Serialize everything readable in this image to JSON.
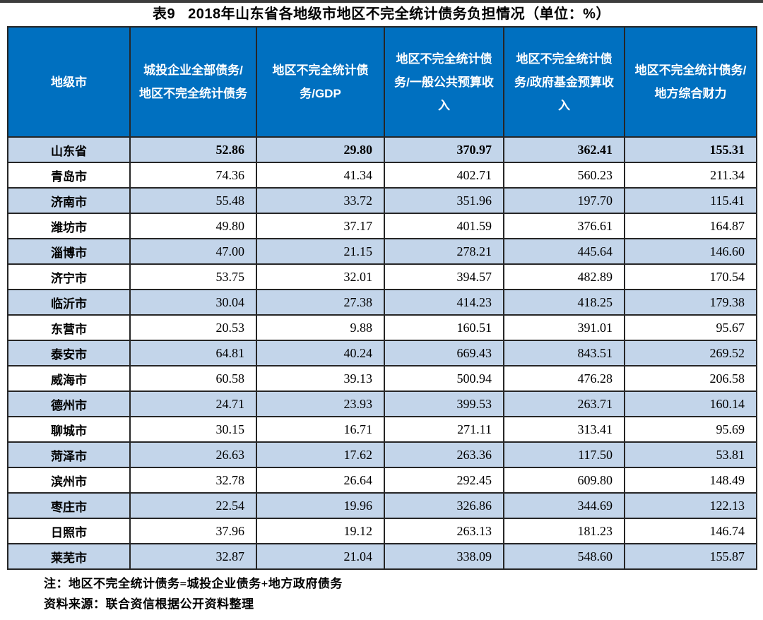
{
  "page": {
    "title_label": "表9",
    "title_text": "2018年山东省各地级市地区不完全统计债务负担情况（单位：%）"
  },
  "table": {
    "columns": [
      "地级市",
      "城投企业全部债务/地区不完全统计债务",
      "地区不完全统计债务/GDP",
      "地区不完全统计债务/一般公共预算收入",
      "地区不完全统计债务/政府基金预算收入",
      "地区不完全统计债务/地方综合财力"
    ],
    "rows": [
      {
        "name": "山东省",
        "values": [
          "52.86",
          "29.80",
          "370.97",
          "362.41",
          "155.31"
        ],
        "bold": true
      },
      {
        "name": "青岛市",
        "values": [
          "74.36",
          "41.34",
          "402.71",
          "560.23",
          "211.34"
        ],
        "bold": false
      },
      {
        "name": "济南市",
        "values": [
          "55.48",
          "33.72",
          "351.96",
          "197.70",
          "115.41"
        ],
        "bold": false
      },
      {
        "name": "潍坊市",
        "values": [
          "49.80",
          "37.17",
          "401.59",
          "376.61",
          "164.87"
        ],
        "bold": false
      },
      {
        "name": "淄博市",
        "values": [
          "47.00",
          "21.15",
          "278.21",
          "445.64",
          "146.60"
        ],
        "bold": false
      },
      {
        "name": "济宁市",
        "values": [
          "53.75",
          "32.01",
          "394.57",
          "482.89",
          "170.54"
        ],
        "bold": false
      },
      {
        "name": "临沂市",
        "values": [
          "30.04",
          "27.38",
          "414.23",
          "418.25",
          "179.38"
        ],
        "bold": false
      },
      {
        "name": "东营市",
        "values": [
          "20.53",
          "9.88",
          "160.51",
          "391.01",
          "95.67"
        ],
        "bold": false
      },
      {
        "name": "泰安市",
        "values": [
          "64.81",
          "40.24",
          "669.43",
          "843.51",
          "269.52"
        ],
        "bold": false
      },
      {
        "name": "威海市",
        "values": [
          "60.58",
          "39.13",
          "500.94",
          "476.28",
          "206.58"
        ],
        "bold": false
      },
      {
        "name": "德州市",
        "values": [
          "24.71",
          "23.93",
          "399.53",
          "263.71",
          "160.14"
        ],
        "bold": false
      },
      {
        "name": "聊城市",
        "values": [
          "30.15",
          "16.71",
          "271.11",
          "313.41",
          "95.69"
        ],
        "bold": false
      },
      {
        "name": "菏泽市",
        "values": [
          "26.63",
          "17.62",
          "263.36",
          "117.50",
          "53.81"
        ],
        "bold": false
      },
      {
        "name": "滨州市",
        "values": [
          "32.78",
          "26.64",
          "292.45",
          "609.80",
          "148.49"
        ],
        "bold": false
      },
      {
        "name": "枣庄市",
        "values": [
          "22.54",
          "19.96",
          "326.86",
          "344.69",
          "122.13"
        ],
        "bold": false
      },
      {
        "name": "日照市",
        "values": [
          "37.96",
          "19.12",
          "263.13",
          "181.23",
          "146.74"
        ],
        "bold": false
      },
      {
        "name": "莱芜市",
        "values": [
          "32.87",
          "21.04",
          "338.09",
          "548.60",
          "155.87"
        ],
        "bold": false
      }
    ],
    "notes": [
      "注：地区不完全统计债务=城投企业债务+地方政府债务",
      "资料来源：联合资信根据公开资料整理"
    ]
  },
  "colors": {
    "header_bg": "#0070C0",
    "header_text": "#FFFFFF",
    "stripe_bg": "#C3D5EA",
    "border": "#262626",
    "text": "#000000",
    "page_bg": "#FFFFFF"
  }
}
